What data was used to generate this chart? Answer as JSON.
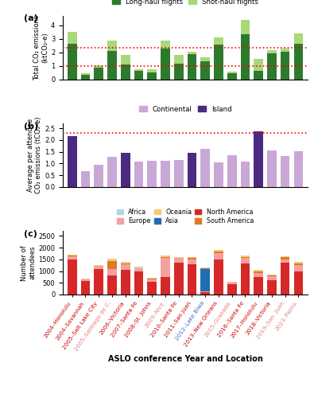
{
  "conferences": [
    "2004–Honolulu",
    "2004–Savannah",
    "2005–Salt Lake City",
    "2005–Santiago de C.",
    "2006–Victoria",
    "2007–Santa Fe",
    "2008–St. Johns",
    "2009–Nice",
    "2010–Santa Fe",
    "2011–San Júan",
    "2012–Lake Biwa",
    "2013–New Orleans",
    "2015–Granada",
    "2016–Santa Fe",
    "2017–Honolulu",
    "2018–Victoria",
    "2019–San  Juan",
    "2023–Palms"
  ],
  "conf_colors": [
    "#cc0000",
    "#cc0000",
    "#cc0000",
    "#e88080",
    "#cc0000",
    "#cc0000",
    "#cc0000",
    "#e88080",
    "#cc0000",
    "#cc0000",
    "#4472c4",
    "#cc0000",
    "#e88080",
    "#cc0000",
    "#cc0000",
    "#cc0000",
    "#e88080",
    "#e88080"
  ],
  "panel_a": {
    "long_haul": [
      2.65,
      0.32,
      0.87,
      2.1,
      1.1,
      0.6,
      0.52,
      2.3,
      1.15,
      1.85,
      1.35,
      2.55,
      0.42,
      3.35,
      0.65,
      1.95,
      2.05,
      2.65
    ],
    "short_haul": [
      0.85,
      0.12,
      0.15,
      0.75,
      0.7,
      0.12,
      0.22,
      0.55,
      0.65,
      0.2,
      0.28,
      0.55,
      0.12,
      1.05,
      0.85,
      0.2,
      0.22,
      0.75
    ],
    "hline1": 1.0,
    "hline2": 2.35,
    "ylim": [
      0,
      4.7
    ],
    "yticks": [
      0.0,
      1.0,
      2.0,
      3.0,
      4.0
    ],
    "ylabel": "Total CO₂ emissions\n(ktCO₂-e)",
    "long_color": "#2d7a2d",
    "short_color": "#a8d87a"
  },
  "panel_b": {
    "values": [
      2.15,
      0.68,
      0.93,
      1.28,
      1.45,
      1.08,
      1.12,
      1.12,
      1.15,
      1.45,
      1.62,
      1.05,
      1.35,
      1.08,
      2.38,
      1.57,
      1.32,
      1.52
    ],
    "bar_types": [
      "island",
      "continental",
      "continental",
      "continental",
      "island",
      "continental",
      "continental",
      "continental",
      "continental",
      "island",
      "continental",
      "continental",
      "continental",
      "continental",
      "island",
      "continental",
      "continental",
      "continental"
    ],
    "hline": 2.3,
    "ylim": [
      0,
      2.7
    ],
    "yticks": [
      0.0,
      0.5,
      1.0,
      1.5,
      2.0,
      2.5
    ],
    "ylabel": "Average per attendee\nCO₂ emissions (tCO₂-e)",
    "continental_color": "#c9a8d8",
    "island_color": "#4b2a82"
  },
  "panel_c": {
    "north_america": [
      1480,
      570,
      1080,
      810,
      1050,
      980,
      530,
      730,
      1350,
      1280,
      100,
      1510,
      430,
      1320,
      750,
      600,
      1350,
      970
    ],
    "europe": [
      160,
      70,
      130,
      270,
      250,
      130,
      130,
      820,
      200,
      200,
      50,
      270,
      70,
      250,
      180,
      180,
      160,
      280
    ],
    "asia": [
      0,
      0,
      0,
      0,
      0,
      0,
      0,
      0,
      0,
      0,
      950,
      0,
      0,
      0,
      0,
      0,
      0,
      0
    ],
    "south_america": [
      20,
      20,
      20,
      360,
      35,
      25,
      20,
      40,
      20,
      80,
      20,
      40,
      15,
      40,
      70,
      20,
      80,
      60
    ],
    "oceania": [
      40,
      20,
      35,
      80,
      60,
      35,
      35,
      80,
      35,
      40,
      15,
      80,
      15,
      60,
      55,
      35,
      40,
      80
    ],
    "africa": [
      5,
      5,
      5,
      5,
      5,
      5,
      5,
      5,
      5,
      5,
      5,
      5,
      5,
      5,
      5,
      5,
      5,
      5
    ],
    "ylim": [
      0,
      2700
    ],
    "yticks": [
      0,
      500,
      1000,
      1500,
      2000,
      2500
    ],
    "ylabel": "Number of\nattendees",
    "africa_color": "#add8e6",
    "asia_color": "#1f6eb5",
    "europe_color": "#f4a0a0",
    "north_america_color": "#d62828",
    "oceania_color": "#f5c97a",
    "south_america_color": "#e07820"
  }
}
